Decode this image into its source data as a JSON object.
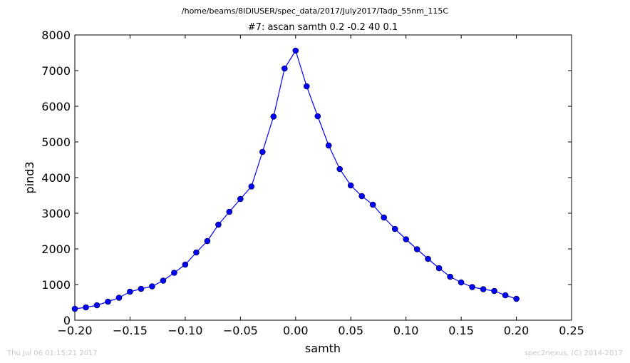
{
  "chart_data": {
    "type": "line",
    "suptitle": "/home/beams/8IDIUSER/spec_data/2017/July2017/Tadp_55nm_115C",
    "title": "#7: ascan  samth 0.2 -0.2  40 0.1",
    "xlabel": "samth",
    "ylabel": "pind3",
    "xlim": [
      -0.2,
      0.25
    ],
    "ylim": [
      0,
      8000
    ],
    "xticks": [
      "−0.20",
      "−0.15",
      "−0.10",
      "−0.05",
      "0.00",
      "0.05",
      "0.10",
      "0.15",
      "0.20",
      "0.25"
    ],
    "yticks": [
      "0",
      "1000",
      "2000",
      "3000",
      "4000",
      "5000",
      "6000",
      "7000",
      "8000"
    ],
    "grid": false,
    "series": [
      {
        "color": "#0000ff",
        "marker": "circle",
        "x": [
          -0.2,
          -0.19,
          -0.18,
          -0.17,
          -0.16,
          -0.15,
          -0.14,
          -0.13,
          -0.12,
          -0.11,
          -0.1,
          -0.09,
          -0.08,
          -0.07,
          -0.06,
          -0.05,
          -0.04,
          -0.03,
          -0.02,
          -0.01,
          0.0,
          0.01,
          0.02,
          0.03,
          0.04,
          0.05,
          0.06,
          0.07,
          0.08,
          0.09,
          0.1,
          0.11,
          0.12,
          0.13,
          0.14,
          0.15,
          0.16,
          0.17,
          0.18,
          0.19,
          0.2
        ],
        "y": [
          320,
          360,
          420,
          520,
          630,
          800,
          880,
          950,
          1110,
          1330,
          1560,
          1900,
          2220,
          2680,
          3040,
          3400,
          3750,
          4720,
          5710,
          7060,
          7560,
          6560,
          5720,
          4900,
          4240,
          3780,
          3480,
          3240,
          2880,
          2560,
          2270,
          1990,
          1720,
          1460,
          1220,
          1060,
          930,
          870,
          820,
          700,
          600
        ]
      }
    ]
  },
  "footer": {
    "left": "Thu Jul 06 01:15:21 2017",
    "right": "spec2nexus, (C) 2014-2017"
  }
}
